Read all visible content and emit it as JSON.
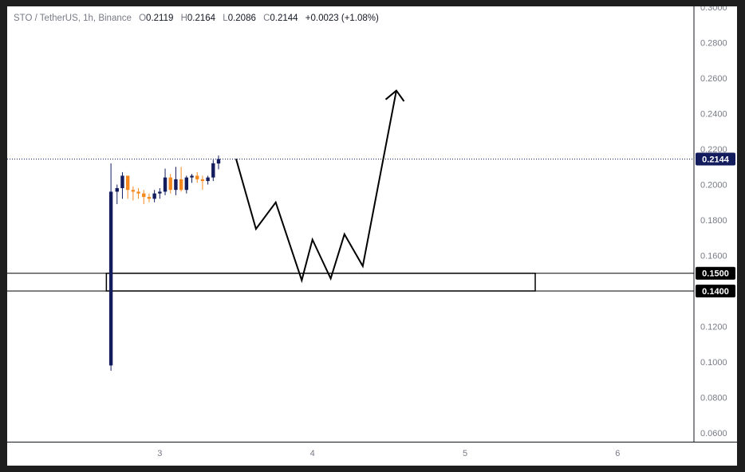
{
  "header": {
    "symbol": "STO / TetherUS, 1h, Binance",
    "open_label": "O",
    "open": "0.2119",
    "high_label": "H",
    "high": "0.2164",
    "low_label": "L",
    "low": "0.2086",
    "close_label": "C",
    "close": "0.2144",
    "change": "+0.0023 (+1.08%)"
  },
  "colors": {
    "up": "#131d5e",
    "down": "#f5891f",
    "text": "#131722",
    "muted": "#787b86"
  },
  "chart_data": {
    "type": "candlestick",
    "x_ticks": [
      "3",
      "4",
      "5",
      "6"
    ],
    "y_ticks": [
      "0.0600",
      "0.0800",
      "0.1000",
      "0.1200",
      "0.1400",
      "0.1600",
      "0.1800",
      "0.2000",
      "0.2200",
      "0.2400",
      "0.2600",
      "0.2800",
      "0.3000"
    ],
    "ylim": [
      0.055,
      0.3005
    ],
    "xlim": [
      2.0,
      6.5
    ],
    "last_price": "0.2144",
    "zone_labels": [
      "0.1500",
      "0.1400"
    ],
    "zone": {
      "low": 0.14,
      "high": 0.15,
      "x_start": 2.65,
      "x_end": 5.46
    },
    "candles": [
      {
        "x": 2.68,
        "o": 0.098,
        "h": 0.212,
        "l": 0.095,
        "c": 0.196
      },
      {
        "x": 2.72,
        "o": 0.196,
        "h": 0.2,
        "l": 0.189,
        "c": 0.198
      },
      {
        "x": 2.755,
        "o": 0.198,
        "h": 0.207,
        "l": 0.192,
        "c": 0.205
      },
      {
        "x": 2.79,
        "o": 0.205,
        "h": 0.205,
        "l": 0.192,
        "c": 0.197
      },
      {
        "x": 2.825,
        "o": 0.197,
        "h": 0.199,
        "l": 0.191,
        "c": 0.196
      },
      {
        "x": 2.86,
        "o": 0.196,
        "h": 0.198,
        "l": 0.192,
        "c": 0.195
      },
      {
        "x": 2.895,
        "o": 0.195,
        "h": 0.197,
        "l": 0.189,
        "c": 0.193
      },
      {
        "x": 2.93,
        "o": 0.193,
        "h": 0.195,
        "l": 0.19,
        "c": 0.192
      },
      {
        "x": 2.965,
        "o": 0.192,
        "h": 0.197,
        "l": 0.19,
        "c": 0.195
      },
      {
        "x": 3.0,
        "o": 0.195,
        "h": 0.198,
        "l": 0.192,
        "c": 0.196
      },
      {
        "x": 3.035,
        "o": 0.196,
        "h": 0.209,
        "l": 0.194,
        "c": 0.204
      },
      {
        "x": 3.07,
        "o": 0.204,
        "h": 0.206,
        "l": 0.195,
        "c": 0.197
      },
      {
        "x": 3.105,
        "o": 0.197,
        "h": 0.21,
        "l": 0.194,
        "c": 0.203
      },
      {
        "x": 3.14,
        "o": 0.203,
        "h": 0.21,
        "l": 0.196,
        "c": 0.197
      },
      {
        "x": 3.175,
        "o": 0.197,
        "h": 0.205,
        "l": 0.195,
        "c": 0.204
      },
      {
        "x": 3.21,
        "o": 0.204,
        "h": 0.206,
        "l": 0.201,
        "c": 0.205
      },
      {
        "x": 3.245,
        "o": 0.205,
        "h": 0.207,
        "l": 0.201,
        "c": 0.203
      },
      {
        "x": 3.28,
        "o": 0.203,
        "h": 0.205,
        "l": 0.197,
        "c": 0.202
      },
      {
        "x": 3.315,
        "o": 0.202,
        "h": 0.205,
        "l": 0.2,
        "c": 0.204
      },
      {
        "x": 3.35,
        "o": 0.204,
        "h": 0.214,
        "l": 0.202,
        "c": 0.212
      },
      {
        "x": 3.385,
        "o": 0.2119,
        "h": 0.2164,
        "l": 0.2086,
        "c": 0.2144
      }
    ],
    "projection": [
      {
        "x": 3.5,
        "y": 0.2145
      },
      {
        "x": 3.63,
        "y": 0.175
      },
      {
        "x": 3.76,
        "y": 0.19
      },
      {
        "x": 3.93,
        "y": 0.146
      },
      {
        "x": 4.0,
        "y": 0.169
      },
      {
        "x": 4.12,
        "y": 0.147
      },
      {
        "x": 4.21,
        "y": 0.172
      },
      {
        "x": 4.33,
        "y": 0.154
      },
      {
        "x": 4.55,
        "y": 0.253
      }
    ],
    "arrow_head": [
      {
        "x": 4.48,
        "y": 0.248
      },
      {
        "x": 4.55,
        "y": 0.253
      },
      {
        "x": 4.6,
        "y": 0.247
      }
    ]
  }
}
